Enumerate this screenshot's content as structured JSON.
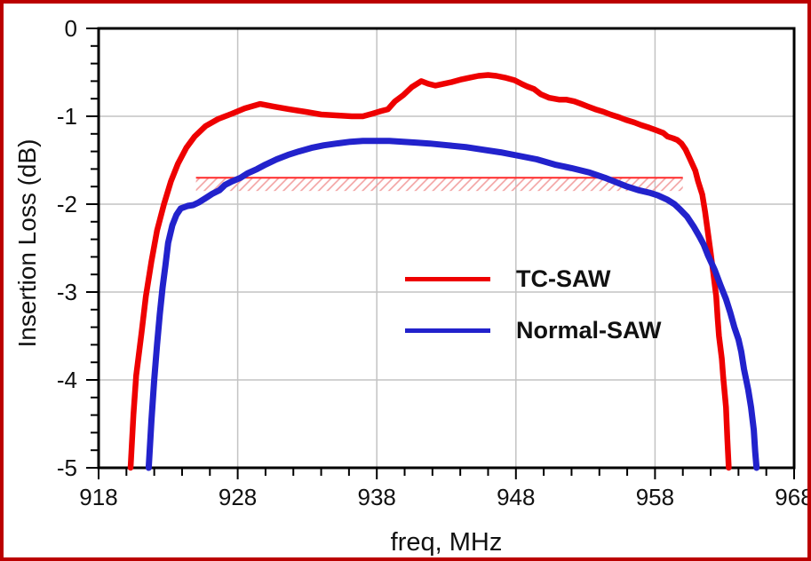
{
  "window": {
    "border_color": "#bb0000",
    "background": "#ffffff"
  },
  "chart_data": {
    "type": "line",
    "xlabel": "freq, MHz",
    "ylabel": "Insertion Loss (dB)",
    "x_range": [
      918,
      968
    ],
    "y_range": [
      -5,
      0
    ],
    "x_major_ticks": [
      918,
      928,
      938,
      948,
      958,
      968
    ],
    "x_minor_step": 2,
    "y_major_ticks": [
      0,
      -1,
      -2,
      -3,
      -4,
      -5
    ],
    "y_minor_step": 0.2,
    "grid": true,
    "grid_color": "#c3c3c3",
    "axis_color": "#000000",
    "legend_position": "inside-center-right",
    "series": [
      {
        "name": "TC-SAW",
        "color": "#ee0000",
        "stroke_width": 6.5,
        "points": [
          [
            920.3,
            -5.0
          ],
          [
            920.5,
            -4.4
          ],
          [
            920.7,
            -3.95
          ],
          [
            921.1,
            -3.45
          ],
          [
            921.4,
            -3.05
          ],
          [
            921.8,
            -2.65
          ],
          [
            922.2,
            -2.3
          ],
          [
            922.7,
            -2.0
          ],
          [
            923.2,
            -1.74
          ],
          [
            923.7,
            -1.54
          ],
          [
            924.3,
            -1.36
          ],
          [
            924.9,
            -1.23
          ],
          [
            925.7,
            -1.11
          ],
          [
            926.6,
            -1.03
          ],
          [
            927.6,
            -0.97
          ],
          [
            928.5,
            -0.91
          ],
          [
            929.6,
            -0.86
          ],
          [
            930.6,
            -0.89
          ],
          [
            931.7,
            -0.92
          ],
          [
            932.9,
            -0.95
          ],
          [
            934.0,
            -0.98
          ],
          [
            935.1,
            -0.99
          ],
          [
            936.2,
            -1.0
          ],
          [
            937.0,
            -1.0
          ],
          [
            937.7,
            -0.97
          ],
          [
            938.3,
            -0.94
          ],
          [
            938.8,
            -0.92
          ],
          [
            939.3,
            -0.83
          ],
          [
            939.9,
            -0.76
          ],
          [
            940.5,
            -0.67
          ],
          [
            941.2,
            -0.6
          ],
          [
            941.7,
            -0.63
          ],
          [
            942.2,
            -0.65
          ],
          [
            942.8,
            -0.63
          ],
          [
            943.4,
            -0.61
          ],
          [
            944.1,
            -0.58
          ],
          [
            944.7,
            -0.56
          ],
          [
            945.3,
            -0.54
          ],
          [
            946.0,
            -0.53
          ],
          [
            946.6,
            -0.54
          ],
          [
            947.2,
            -0.56
          ],
          [
            947.9,
            -0.59
          ],
          [
            948.4,
            -0.63
          ],
          [
            948.8,
            -0.66
          ],
          [
            949.3,
            -0.69
          ],
          [
            949.8,
            -0.75
          ],
          [
            950.4,
            -0.79
          ],
          [
            951.1,
            -0.81
          ],
          [
            951.6,
            -0.81
          ],
          [
            952.2,
            -0.83
          ],
          [
            952.7,
            -0.86
          ],
          [
            953.2,
            -0.89
          ],
          [
            953.7,
            -0.92
          ],
          [
            954.3,
            -0.95
          ],
          [
            954.8,
            -0.98
          ],
          [
            955.4,
            -1.01
          ],
          [
            955.9,
            -1.04
          ],
          [
            956.5,
            -1.07
          ],
          [
            957.0,
            -1.1
          ],
          [
            957.6,
            -1.13
          ],
          [
            958.1,
            -1.16
          ],
          [
            958.6,
            -1.19
          ],
          [
            958.9,
            -1.23
          ],
          [
            959.3,
            -1.25
          ],
          [
            959.6,
            -1.27
          ],
          [
            959.9,
            -1.31
          ],
          [
            960.2,
            -1.38
          ],
          [
            960.5,
            -1.48
          ],
          [
            960.9,
            -1.62
          ],
          [
            961.1,
            -1.74
          ],
          [
            961.4,
            -1.89
          ],
          [
            961.6,
            -2.09
          ],
          [
            961.8,
            -2.32
          ],
          [
            962.0,
            -2.55
          ],
          [
            962.2,
            -2.8
          ],
          [
            962.4,
            -3.05
          ],
          [
            962.5,
            -3.3
          ],
          [
            962.6,
            -3.5
          ],
          [
            962.8,
            -3.76
          ],
          [
            962.9,
            -3.96
          ],
          [
            963.1,
            -4.31
          ],
          [
            963.2,
            -4.67
          ],
          [
            963.3,
            -5.0
          ]
        ]
      },
      {
        "name": "Normal-SAW",
        "color": "#2222cc",
        "stroke_width": 7,
        "points": [
          [
            921.6,
            -5.0
          ],
          [
            921.8,
            -4.46
          ],
          [
            922.0,
            -4.0
          ],
          [
            922.2,
            -3.6
          ],
          [
            922.4,
            -3.25
          ],
          [
            922.6,
            -2.95
          ],
          [
            922.8,
            -2.7
          ],
          [
            923.0,
            -2.44
          ],
          [
            923.3,
            -2.24
          ],
          [
            923.6,
            -2.12
          ],
          [
            923.9,
            -2.05
          ],
          [
            924.4,
            -2.02
          ],
          [
            924.8,
            -2.01
          ],
          [
            925.2,
            -1.98
          ],
          [
            925.7,
            -1.93
          ],
          [
            926.2,
            -1.88
          ],
          [
            926.7,
            -1.84
          ],
          [
            927.1,
            -1.78
          ],
          [
            927.6,
            -1.74
          ],
          [
            928.2,
            -1.7
          ],
          [
            928.7,
            -1.65
          ],
          [
            929.4,
            -1.6
          ],
          [
            930.0,
            -1.55
          ],
          [
            930.8,
            -1.49
          ],
          [
            931.6,
            -1.44
          ],
          [
            932.4,
            -1.4
          ],
          [
            933.3,
            -1.36
          ],
          [
            934.2,
            -1.33
          ],
          [
            935.1,
            -1.31
          ],
          [
            936.1,
            -1.29
          ],
          [
            937.0,
            -1.28
          ],
          [
            938.0,
            -1.28
          ],
          [
            938.9,
            -1.28
          ],
          [
            939.9,
            -1.29
          ],
          [
            940.9,
            -1.3
          ],
          [
            941.8,
            -1.31
          ],
          [
            943.1,
            -1.33
          ],
          [
            944.4,
            -1.35
          ],
          [
            945.6,
            -1.38
          ],
          [
            946.9,
            -1.41
          ],
          [
            948.2,
            -1.45
          ],
          [
            949.5,
            -1.49
          ],
          [
            950.8,
            -1.55
          ],
          [
            952.0,
            -1.59
          ],
          [
            953.3,
            -1.64
          ],
          [
            954.4,
            -1.7
          ],
          [
            955.2,
            -1.75
          ],
          [
            956.0,
            -1.8
          ],
          [
            956.8,
            -1.84
          ],
          [
            957.6,
            -1.87
          ],
          [
            958.2,
            -1.9
          ],
          [
            958.9,
            -1.95
          ],
          [
            959.4,
            -2.0
          ],
          [
            959.8,
            -2.06
          ],
          [
            960.3,
            -2.14
          ],
          [
            960.8,
            -2.26
          ],
          [
            961.2,
            -2.37
          ],
          [
            961.5,
            -2.46
          ],
          [
            961.8,
            -2.58
          ],
          [
            962.3,
            -2.75
          ],
          [
            962.7,
            -2.92
          ],
          [
            963.1,
            -3.08
          ],
          [
            963.4,
            -3.23
          ],
          [
            963.7,
            -3.4
          ],
          [
            964.0,
            -3.54
          ],
          [
            964.2,
            -3.68
          ],
          [
            964.4,
            -3.88
          ],
          [
            964.7,
            -4.11
          ],
          [
            964.9,
            -4.31
          ],
          [
            965.1,
            -4.57
          ],
          [
            965.2,
            -4.82
          ],
          [
            965.3,
            -5.0
          ]
        ]
      }
    ],
    "spec_band": {
      "x0": 925,
      "x1": 960,
      "y_top": -1.7,
      "y_bottom": -1.85,
      "line_color": "#ff2a2a",
      "hatch_color": "#f2a0a0"
    }
  }
}
